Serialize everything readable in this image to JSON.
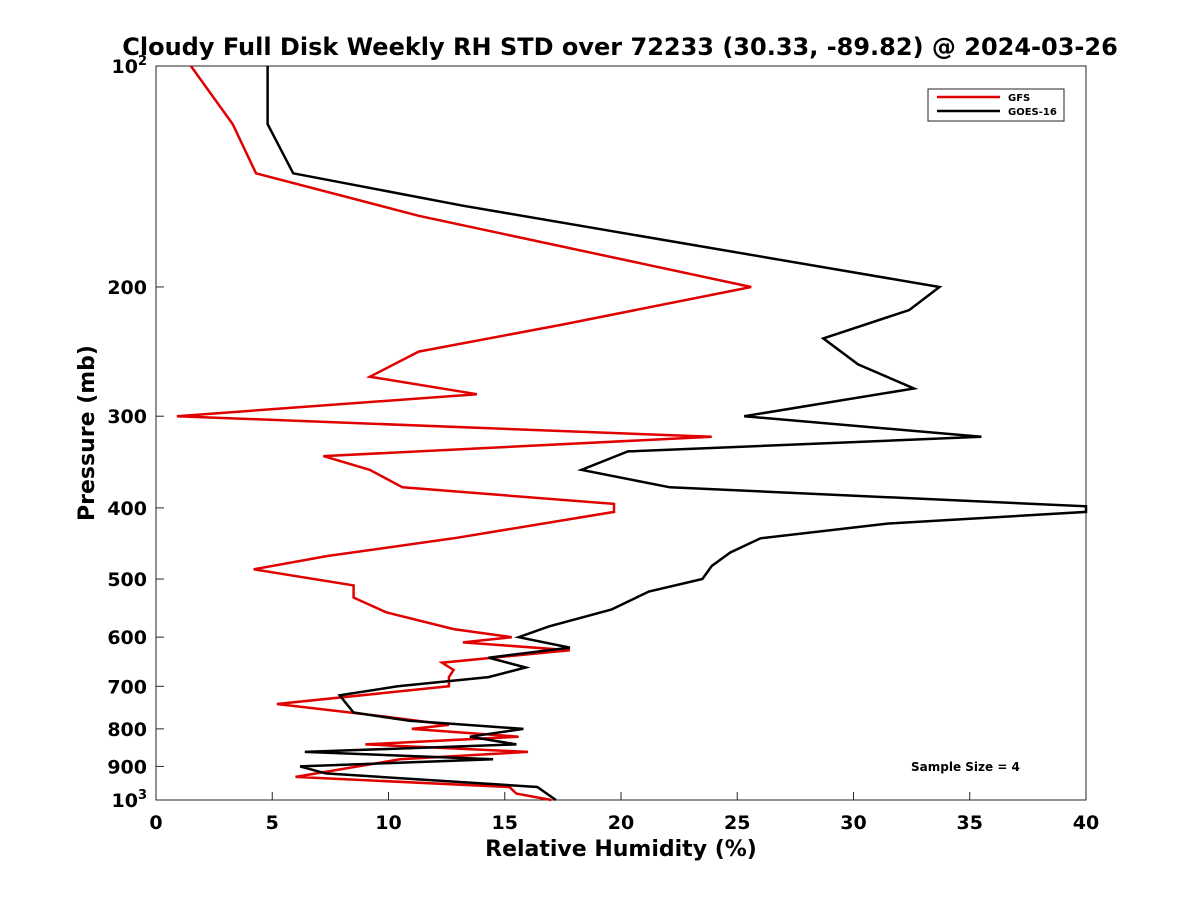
{
  "chart_data": {
    "type": "line",
    "title": "Cloudy Full Disk Weekly RH STD over 72233 (30.33, -89.82) @ 2024-03-26",
    "xlabel": "Relative Humidity (%)",
    "ylabel": "Pressure (mb)",
    "xlim": [
      0,
      40
    ],
    "ylim": [
      100,
      1000
    ],
    "yscale": "log",
    "y_reversed": true,
    "grid": false,
    "legend_position": "top-right",
    "x_ticks": [
      "0",
      "5",
      "10",
      "15",
      "20",
      "25",
      "30",
      "35",
      "40"
    ],
    "y_ticks": [
      {
        "value": 100,
        "base": "10",
        "exp": "2"
      },
      {
        "value": 200,
        "label": "200"
      },
      {
        "value": 300,
        "label": "300"
      },
      {
        "value": 400,
        "label": "400"
      },
      {
        "value": 500,
        "label": "500"
      },
      {
        "value": 600,
        "label": "600"
      },
      {
        "value": 700,
        "label": "700"
      },
      {
        "value": 800,
        "label": "800"
      },
      {
        "value": 900,
        "label": "900"
      },
      {
        "value": 1000,
        "base": "10",
        "exp": "3"
      }
    ],
    "annotation": "Sample Size = 4",
    "series": [
      {
        "name": "GFS",
        "color": "#e00000",
        "x": [
          1.5,
          3.3,
          4.3,
          11.3,
          25.6,
          17.5,
          11.3,
          9.2,
          13.8,
          0.9,
          23.9,
          7.2,
          9.2,
          10.6,
          19.7,
          19.7,
          12.8,
          7.4,
          4.2,
          8.5,
          8.5,
          9.9,
          12.8,
          15.3,
          13.2,
          17.8,
          12.3,
          12.8,
          12.6,
          12.6,
          5.2,
          9.9,
          12.6,
          11.0,
          15.6,
          9.0,
          16.0,
          10.5,
          6.0,
          15.2,
          15.5,
          17.0
        ],
        "y": [
          100,
          120,
          140,
          160,
          200,
          225,
          245,
          265,
          280,
          300,
          320,
          340,
          355,
          375,
          395,
          405,
          440,
          465,
          485,
          510,
          530,
          555,
          585,
          600,
          610,
          625,
          650,
          665,
          680,
          700,
          740,
          770,
          790,
          800,
          820,
          840,
          860,
          880,
          930,
          960,
          980,
          1000
        ]
      },
      {
        "name": "GOES-16",
        "color": "#000000",
        "x": [
          4.8,
          4.8,
          5.9,
          13.2,
          33.7,
          32.4,
          28.7,
          30.2,
          32.6,
          25.3,
          35.5,
          20.3,
          18.3,
          22.1,
          40.0,
          40.0,
          31.5,
          26.0,
          24.7,
          23.9,
          23.5,
          21.2,
          19.6,
          16.9,
          15.6,
          17.8,
          14.3,
          15.9,
          14.3,
          10.4,
          7.9,
          8.2,
          8.5,
          10.9,
          15.8,
          13.5,
          15.5,
          6.4,
          14.5,
          6.2,
          7.3,
          16.4,
          17.2
        ],
        "y": [
          100,
          120,
          140,
          155,
          200,
          215,
          235,
          255,
          275,
          300,
          320,
          335,
          355,
          375,
          398,
          405,
          420,
          440,
          460,
          480,
          500,
          520,
          550,
          580,
          600,
          620,
          640,
          660,
          680,
          700,
          720,
          740,
          760,
          780,
          800,
          820,
          840,
          860,
          880,
          900,
          920,
          960,
          1000
        ]
      }
    ]
  }
}
